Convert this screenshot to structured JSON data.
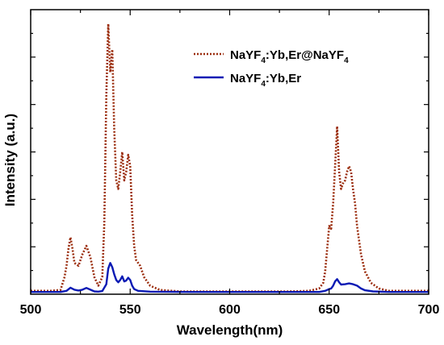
{
  "chart_data": {
    "type": "line",
    "xlabel": "Wavelength(nm)",
    "ylabel": "Intensity (a.u.)",
    "xlim": [
      500,
      700
    ],
    "ylim": [
      0,
      100
    ],
    "x_ticks": [
      500,
      550,
      600,
      650,
      700
    ],
    "y_ticks_labeled": false,
    "grid": false,
    "legend_position": "top-right",
    "series": [
      {
        "name_parts": [
          "NaYF",
          "4",
          ":Yb,Er@NaYF",
          "4"
        ],
        "name": "NaYF4:Yb,Er@NaYF4",
        "color": "#9b2d0e",
        "line_style": "dotted",
        "points": [
          [
            500,
            1.2
          ],
          [
            510,
            1.2
          ],
          [
            515,
            1.5
          ],
          [
            517,
            6
          ],
          [
            518,
            10
          ],
          [
            519,
            16
          ],
          [
            520,
            20
          ],
          [
            521,
            16
          ],
          [
            522,
            11
          ],
          [
            524,
            10
          ],
          [
            526,
            14
          ],
          [
            528,
            17
          ],
          [
            530,
            13
          ],
          [
            532,
            6
          ],
          [
            534,
            3
          ],
          [
            536,
            6
          ],
          [
            537,
            25
          ],
          [
            538,
            70
          ],
          [
            539,
            95
          ],
          [
            540,
            78
          ],
          [
            541,
            86
          ],
          [
            542,
            58
          ],
          [
            543,
            40
          ],
          [
            544,
            37
          ],
          [
            545,
            43
          ],
          [
            546,
            50
          ],
          [
            547,
            40
          ],
          [
            548,
            43
          ],
          [
            549,
            49
          ],
          [
            550,
            45
          ],
          [
            551,
            28
          ],
          [
            552,
            17
          ],
          [
            553,
            12
          ],
          [
            555,
            10
          ],
          [
            557,
            6
          ],
          [
            560,
            3
          ],
          [
            565,
            1.5
          ],
          [
            575,
            1
          ],
          [
            600,
            1
          ],
          [
            630,
            1
          ],
          [
            640,
            1.2
          ],
          [
            645,
            2
          ],
          [
            647,
            4
          ],
          [
            648,
            8
          ],
          [
            649,
            16
          ],
          [
            650,
            24
          ],
          [
            651,
            23
          ],
          [
            652,
            32
          ],
          [
            653,
            45
          ],
          [
            654,
            59
          ],
          [
            655,
            43
          ],
          [
            656,
            37
          ],
          [
            657,
            39
          ],
          [
            658,
            40
          ],
          [
            659,
            43
          ],
          [
            660,
            45
          ],
          [
            661,
            43
          ],
          [
            662,
            37
          ],
          [
            663,
            32
          ],
          [
            664,
            24
          ],
          [
            666,
            14
          ],
          [
            668,
            8
          ],
          [
            671,
            4
          ],
          [
            675,
            2
          ],
          [
            680,
            1.2
          ],
          [
            700,
            1.2
          ]
        ]
      },
      {
        "name_parts": [
          "NaYF",
          "4",
          ":Yb,Er"
        ],
        "name": "NaYF4:Yb,Er",
        "color": "#0a1ab4",
        "line_style": "solid",
        "points": [
          [
            500,
            0.8
          ],
          [
            515,
            0.8
          ],
          [
            518,
            1.2
          ],
          [
            520,
            2.3
          ],
          [
            522,
            1.6
          ],
          [
            524,
            1.3
          ],
          [
            526,
            1.6
          ],
          [
            528,
            2.2
          ],
          [
            530,
            1.6
          ],
          [
            532,
            1
          ],
          [
            534,
            0.9
          ],
          [
            536,
            1.1
          ],
          [
            538,
            3.5
          ],
          [
            539,
            9
          ],
          [
            540,
            11
          ],
          [
            541,
            9.5
          ],
          [
            542,
            7
          ],
          [
            543,
            5
          ],
          [
            544,
            4.2
          ],
          [
            545,
            5
          ],
          [
            546,
            6.3
          ],
          [
            547,
            4.5
          ],
          [
            548,
            4.8
          ],
          [
            549,
            5.8
          ],
          [
            550,
            5
          ],
          [
            551,
            3
          ],
          [
            552,
            1.8
          ],
          [
            554,
            1.2
          ],
          [
            560,
            0.9
          ],
          [
            580,
            0.8
          ],
          [
            620,
            0.8
          ],
          [
            645,
            0.8
          ],
          [
            648,
            1.2
          ],
          [
            650,
            1.8
          ],
          [
            651,
            2
          ],
          [
            652,
            3
          ],
          [
            653,
            4.5
          ],
          [
            654,
            5.3
          ],
          [
            655,
            4.2
          ],
          [
            656,
            3.4
          ],
          [
            658,
            3.5
          ],
          [
            660,
            3.8
          ],
          [
            662,
            3.5
          ],
          [
            664,
            3
          ],
          [
            666,
            2
          ],
          [
            668,
            1.4
          ],
          [
            672,
            1
          ],
          [
            680,
            0.8
          ],
          [
            700,
            0.8
          ]
        ]
      }
    ]
  }
}
